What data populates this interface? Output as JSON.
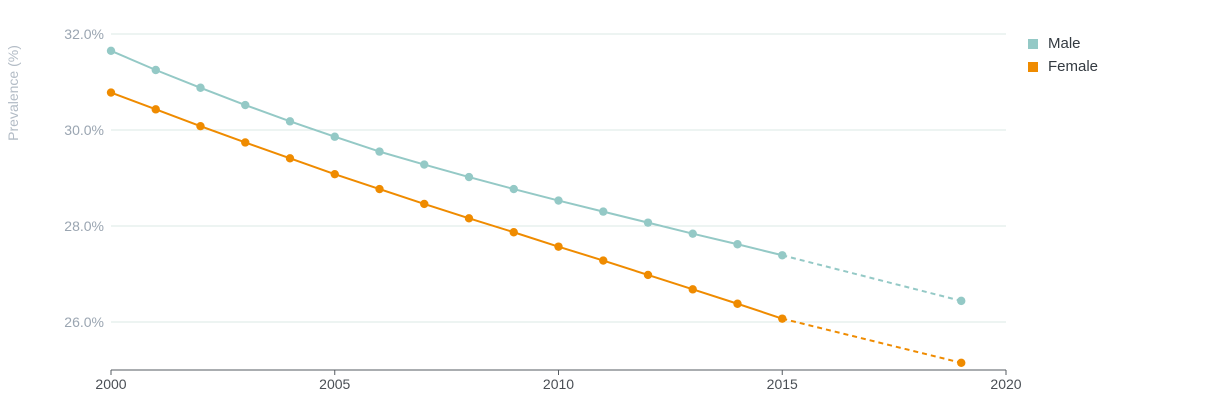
{
  "chart_data": {
    "type": "line",
    "ylabel": "Prevalence (%)",
    "xlabel": "",
    "xlim": [
      2000,
      2020
    ],
    "ylim": [
      25.0,
      32.0
    ],
    "x_ticks": [
      "2000",
      "2005",
      "2010",
      "2015",
      "2020"
    ],
    "y_ticks": [
      "26.0%",
      "28.0%",
      "30.0%",
      "32.0%"
    ],
    "grid": "horizontal",
    "legend_position": "top-right",
    "series": [
      {
        "name": "Male",
        "color": "#94c9c6",
        "x": [
          2000,
          2001,
          2002,
          2003,
          2004,
          2005,
          2006,
          2007,
          2008,
          2009,
          2010,
          2011,
          2012,
          2013,
          2014,
          2015,
          2019
        ],
        "values": [
          31.65,
          31.25,
          30.88,
          30.52,
          30.18,
          29.86,
          29.55,
          29.28,
          29.02,
          28.77,
          28.53,
          28.3,
          28.07,
          27.84,
          27.62,
          27.39,
          26.44
        ],
        "projected_from": 2015
      },
      {
        "name": "Female",
        "color": "#ef8b00",
        "x": [
          2000,
          2001,
          2002,
          2003,
          2004,
          2005,
          2006,
          2007,
          2008,
          2009,
          2010,
          2011,
          2012,
          2013,
          2014,
          2015,
          2019
        ],
        "values": [
          30.78,
          30.43,
          30.08,
          29.74,
          29.41,
          29.08,
          28.77,
          28.46,
          28.16,
          27.87,
          27.57,
          27.28,
          26.98,
          26.68,
          26.38,
          26.07,
          25.15
        ],
        "projected_from": 2015
      }
    ]
  }
}
